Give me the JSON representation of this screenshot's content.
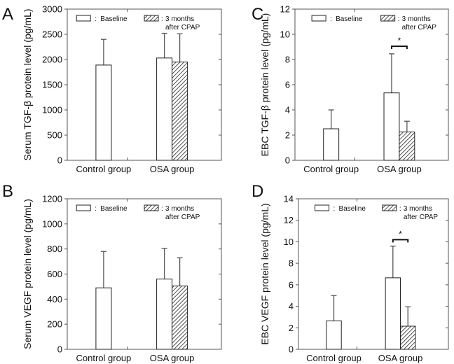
{
  "chart_data": [
    {
      "panel": "A",
      "type": "bar",
      "ylabel": "Serum TGF-β protein level (pg/mL)",
      "categories": [
        "Control group",
        "OSA group"
      ],
      "ylim": [
        0,
        3000
      ],
      "yticks": [
        0,
        500,
        1000,
        1500,
        2000,
        2500,
        3000
      ],
      "legend": {
        "baseline": "Baseline",
        "cpap_line1": "3 months",
        "cpap_line2": "after CPAP",
        "sep": ":"
      },
      "series": [
        {
          "name": "Baseline",
          "values": [
            1890,
            2030
          ],
          "errors": [
            510,
            490
          ]
        },
        {
          "name": "3 months after CPAP",
          "values": [
            null,
            1950
          ],
          "errors": [
            null,
            560
          ]
        }
      ],
      "significance": null
    },
    {
      "panel": "C",
      "type": "bar",
      "ylabel": "EBC TGF-β protein level (pg/mL)",
      "categories": [
        "Control group",
        "OSA group"
      ],
      "ylim": [
        0,
        12
      ],
      "yticks": [
        0,
        2,
        4,
        6,
        8,
        10,
        12
      ],
      "legend": {
        "baseline": "Baseline",
        "cpap_line1": "3 months",
        "cpap_line2": "after CPAP",
        "sep": ":"
      },
      "series": [
        {
          "name": "Baseline",
          "values": [
            2.5,
            5.35
          ],
          "errors": [
            1.5,
            3.1
          ]
        },
        {
          "name": "3 months after CPAP",
          "values": [
            null,
            2.25
          ],
          "errors": [
            null,
            0.85
          ]
        }
      ],
      "significance": {
        "label": "*",
        "level": 9.05
      }
    },
    {
      "panel": "B",
      "type": "bar",
      "ylabel": "Serum VEGF protein level (pg/mL)",
      "categories": [
        "Control group",
        "OSA group"
      ],
      "ylim": [
        0,
        1200
      ],
      "yticks": [
        0,
        200,
        400,
        600,
        800,
        1000,
        1200
      ],
      "legend": {
        "baseline": "Baseline",
        "cpap_line1": "3 months",
        "cpap_line2": "after CPAP",
        "sep": ":"
      },
      "series": [
        {
          "name": "Baseline",
          "values": [
            490,
            560
          ],
          "errors": [
            290,
            245
          ]
        },
        {
          "name": "3 months after CPAP",
          "values": [
            null,
            505
          ],
          "errors": [
            null,
            225
          ]
        }
      ],
      "significance": null
    },
    {
      "panel": "D",
      "type": "bar",
      "ylabel": "EBC VEGF protein level (pg/mL)",
      "categories": [
        "Control group",
        "OSA group"
      ],
      "ylim": [
        0,
        14
      ],
      "yticks": [
        0,
        2,
        4,
        6,
        8,
        10,
        12,
        14
      ],
      "legend": {
        "baseline": "Baseline",
        "cpap_line1": "3 months",
        "cpap_line2": "after CPAP",
        "sep": ":"
      },
      "series": [
        {
          "name": "Baseline",
          "values": [
            2.65,
            6.65
          ],
          "errors": [
            2.35,
            2.95
          ]
        },
        {
          "name": "3 months after CPAP",
          "values": [
            null,
            2.15
          ],
          "errors": [
            null,
            1.8
          ]
        }
      ],
      "significance": {
        "label": "*",
        "level": 10.2
      }
    }
  ]
}
